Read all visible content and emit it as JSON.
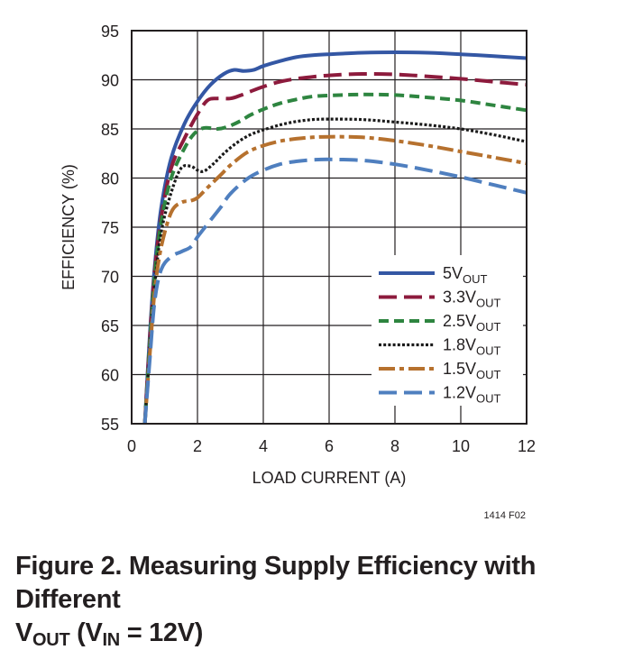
{
  "chart_data": {
    "type": "line",
    "title": "",
    "xlabel": "LOAD CURRENT (A)",
    "ylabel": "EFFICIENCY (%)",
    "xlim": [
      0,
      12
    ],
    "ylim": [
      55,
      95
    ],
    "xticks": [
      "0",
      "2",
      "4",
      "6",
      "8",
      "10",
      "12"
    ],
    "yticks": [
      "55",
      "60",
      "65",
      "70",
      "75",
      "80",
      "85",
      "90",
      "95"
    ],
    "grid": true,
    "legend_position": "lower-right",
    "series": [
      {
        "name": "5V",
        "subscript": "OUT",
        "color": "#3457a4",
        "dash": "solid",
        "x": [
          0.4,
          0.55,
          0.7,
          0.9,
          1.2,
          1.6,
          2.0,
          2.4,
          2.8,
          3.1,
          3.4,
          3.7,
          4.0,
          4.5,
          5.0,
          5.5,
          6.0,
          7.0,
          8.0,
          9.0,
          10.0,
          11.0,
          12.0
        ],
        "y": [
          55,
          64,
          71,
          77,
          82,
          85.5,
          87.8,
          89.5,
          90.6,
          91.0,
          90.9,
          91.0,
          91.4,
          91.9,
          92.3,
          92.5,
          92.6,
          92.75,
          92.8,
          92.75,
          92.6,
          92.4,
          92.2
        ]
      },
      {
        "name": "3.3V",
        "subscript": "OUT",
        "color": "#8d1b3d",
        "dash": "long-dash",
        "x": [
          0.4,
          0.55,
          0.7,
          0.9,
          1.2,
          1.6,
          2.0,
          2.3,
          2.6,
          3.0,
          3.3,
          3.6,
          4.0,
          4.5,
          5.0,
          5.5,
          6.0,
          7.0,
          8.0,
          9.0,
          10.0,
          11.0,
          12.0
        ],
        "y": [
          55,
          63.5,
          70.5,
          76,
          81,
          84,
          86.5,
          87.9,
          88.1,
          88.1,
          88.4,
          88.8,
          89.3,
          89.8,
          90.1,
          90.3,
          90.45,
          90.6,
          90.55,
          90.35,
          90.1,
          89.8,
          89.5
        ]
      },
      {
        "name": "2.5V",
        "subscript": "OUT",
        "color": "#2e8540",
        "dash": "dash",
        "x": [
          0.4,
          0.55,
          0.7,
          0.9,
          1.2,
          1.6,
          1.9,
          2.2,
          2.6,
          2.9,
          3.3,
          3.6,
          4.0,
          4.5,
          5.0,
          5.5,
          6.0,
          7.0,
          8.0,
          9.0,
          10.0,
          11.0,
          12.0
        ],
        "y": [
          55,
          63,
          70,
          75.5,
          80,
          83,
          84.5,
          85.1,
          85.0,
          85.2,
          85.8,
          86.4,
          87.0,
          87.6,
          88.0,
          88.3,
          88.4,
          88.5,
          88.45,
          88.2,
          87.9,
          87.4,
          86.9
        ]
      },
      {
        "name": "1.8V",
        "subscript": "OUT",
        "color": "#1a1a1a",
        "dash": "dot",
        "x": [
          0.4,
          0.55,
          0.7,
          0.9,
          1.2,
          1.5,
          1.8,
          2.0,
          2.2,
          2.5,
          2.8,
          3.2,
          3.6,
          4.0,
          4.5,
          5.0,
          5.5,
          6.0,
          7.0,
          8.0,
          9.0,
          10.0,
          11.0,
          12.0
        ],
        "y": [
          55,
          62.5,
          69,
          74.5,
          78.5,
          81.0,
          81.2,
          80.8,
          80.7,
          81.5,
          82.5,
          83.6,
          84.4,
          84.9,
          85.4,
          85.75,
          85.95,
          86.0,
          85.95,
          85.7,
          85.4,
          85.0,
          84.4,
          83.7
        ]
      },
      {
        "name": "1.5V",
        "subscript": "OUT",
        "color": "#b6712e",
        "dash": "dash-dot",
        "x": [
          0.4,
          0.55,
          0.7,
          0.9,
          1.2,
          1.5,
          1.8,
          2.0,
          2.3,
          2.7,
          3.0,
          3.5,
          4.0,
          4.5,
          5.0,
          5.5,
          6.0,
          7.0,
          8.0,
          9.0,
          10.0,
          11.0,
          12.0
        ],
        "y": [
          55,
          62,
          68.5,
          73,
          76.5,
          77.5,
          77.7,
          78.0,
          79.0,
          80.3,
          81.3,
          82.6,
          83.3,
          83.75,
          84.0,
          84.15,
          84.2,
          84.15,
          83.8,
          83.3,
          82.7,
          82.1,
          81.5
        ]
      },
      {
        "name": "1.2V",
        "subscript": "OUT",
        "color": "#4f7fbf",
        "dash": "long-dash",
        "x": [
          0.4,
          0.55,
          0.7,
          0.9,
          1.2,
          1.5,
          1.8,
          2.0,
          2.3,
          2.7,
          3.0,
          3.5,
          4.0,
          4.5,
          5.0,
          5.5,
          6.0,
          7.0,
          8.0,
          9.0,
          10.0,
          11.0,
          12.0
        ],
        "y": [
          55,
          61.5,
          67.5,
          70.7,
          72.0,
          72.5,
          73.0,
          74.0,
          75.3,
          77.0,
          78.4,
          79.9,
          80.8,
          81.4,
          81.7,
          81.85,
          81.9,
          81.8,
          81.4,
          80.8,
          80.1,
          79.3,
          78.5
        ]
      }
    ]
  },
  "figure_code": "1414 F02",
  "caption": {
    "line1": "Figure 2. Measuring Supply Efficiency with Different",
    "vout_main": "V",
    "vout_sub": "OUT",
    "paren_open": " (V",
    "vin_sub": "IN",
    "paren_rest": " = 12V)"
  }
}
